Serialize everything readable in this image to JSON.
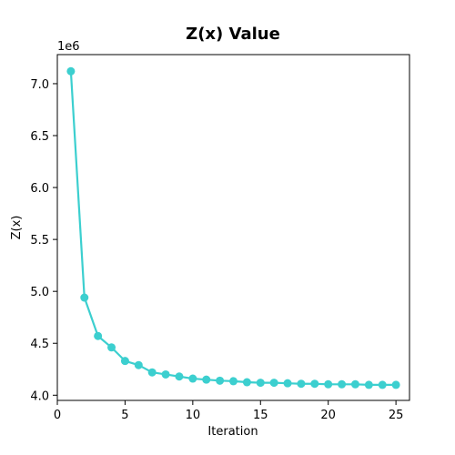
{
  "chart_data": {
    "type": "line",
    "title": "Z(x) Value",
    "xlabel": "Iteration",
    "ylabel": "Z(x)",
    "y_offset_label": "1e6",
    "xlim": [
      0,
      26
    ],
    "ylim": [
      3.95,
      7.28
    ],
    "x_ticks": [
      0,
      5,
      10,
      15,
      20,
      25
    ],
    "y_ticks": [
      4.0,
      4.5,
      5.0,
      5.5,
      6.0,
      6.5,
      7.0
    ],
    "y_tick_labels": [
      "4.0",
      "4.5",
      "5.0",
      "5.5",
      "6.0",
      "6.5",
      "7.0"
    ],
    "grid": false,
    "color": "#3ccfcf",
    "series": [
      {
        "x": [
          1,
          2,
          3,
          4,
          5,
          6,
          7,
          8,
          9,
          10,
          11,
          12,
          13,
          14,
          15,
          16,
          17,
          18,
          19,
          20,
          21,
          22,
          23,
          24,
          25
        ],
        "y": [
          7.12,
          4.94,
          4.57,
          4.46,
          4.33,
          4.29,
          4.22,
          4.2,
          4.18,
          4.16,
          4.15,
          4.14,
          4.135,
          4.125,
          4.12,
          4.12,
          4.115,
          4.11,
          4.11,
          4.105,
          4.105,
          4.105,
          4.1,
          4.1,
          4.1
        ]
      }
    ]
  }
}
